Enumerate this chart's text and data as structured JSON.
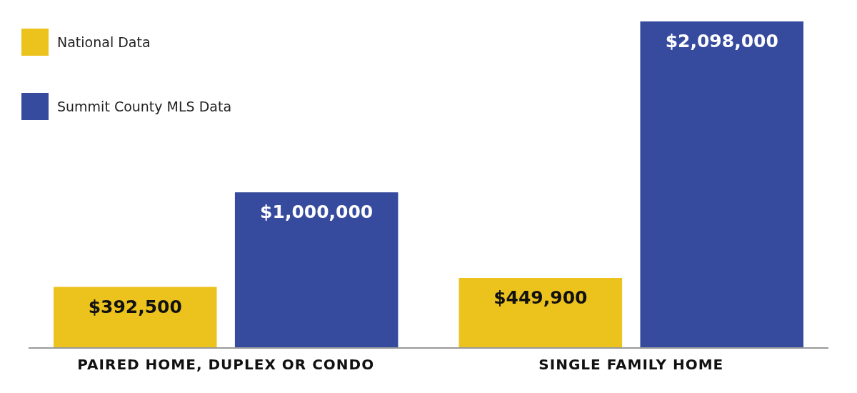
{
  "chart_data": {
    "type": "bar",
    "categories": [
      "PAIRED HOME, DUPLEX OR CONDO",
      "SINGLE FAMILY HOME"
    ],
    "series": [
      {
        "name": "National Data",
        "color": "#ecc21d",
        "values": [
          392500,
          449900
        ],
        "value_labels": [
          "$392,500",
          "$449,900"
        ]
      },
      {
        "name": "Summit County MLS Data",
        "color": "#364a9e",
        "values": [
          1000000,
          2098000
        ],
        "value_labels": [
          "$1,000,000",
          "$2,098,000"
        ]
      }
    ],
    "legend": "top left"
  }
}
